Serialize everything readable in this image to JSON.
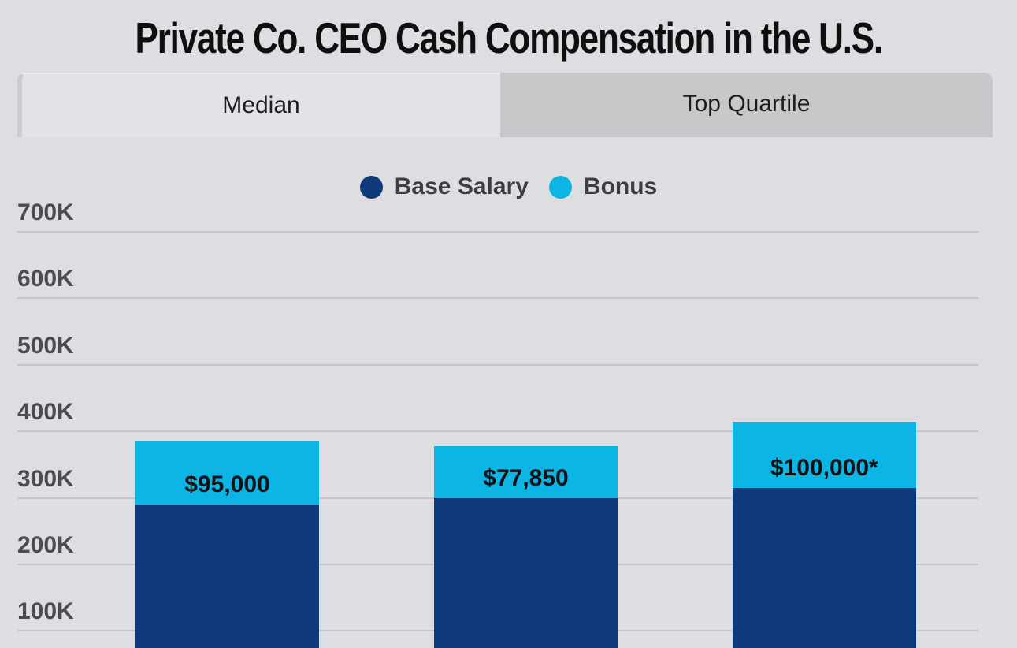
{
  "title": "Private Co. CEO Cash Compensation in the U.S.",
  "tabs": [
    {
      "label": "Median",
      "active": true
    },
    {
      "label": "Top Quartile",
      "active": false
    }
  ],
  "legend": [
    {
      "label": "Base Salary",
      "color": "#0e3a7b"
    },
    {
      "label": "Bonus",
      "color": "#0cb5e3"
    }
  ],
  "colors": {
    "background": "#dcdee1",
    "active_tab": "#e2e3e6",
    "inactive_tab": "#c7c8ca",
    "gridline": "#c4c6c9",
    "base_salary": "#0e3a7b",
    "bonus": "#0cb5e3",
    "tick_text": "#4c4c4e"
  },
  "chart_data": {
    "type": "bar",
    "stacked": true,
    "title": "Private Co. CEO Cash Compensation in the U.S.",
    "categories": [
      "",
      "",
      ""
    ],
    "series": [
      {
        "name": "Base Salary",
        "color": "#0e3a7b",
        "values": [
          290000,
          300000,
          315000
        ]
      },
      {
        "name": "Bonus",
        "color": "#0cb5e3",
        "values": [
          95000,
          77850,
          100000
        ]
      }
    ],
    "bar_labels": [
      "$95,000",
      "$77,850",
      "$100,000*"
    ],
    "y_ticks": [
      "700K",
      "600K",
      "500K",
      "400K",
      "300K",
      "200K",
      "100K"
    ],
    "y_tick_values": [
      700000,
      600000,
      500000,
      400000,
      300000,
      200000,
      100000
    ],
    "ylim": [
      0,
      750000
    ],
    "grid": true,
    "legend_position": "top",
    "notes": "bottom of bars and x-axis labels cut off at screenshot edge"
  }
}
